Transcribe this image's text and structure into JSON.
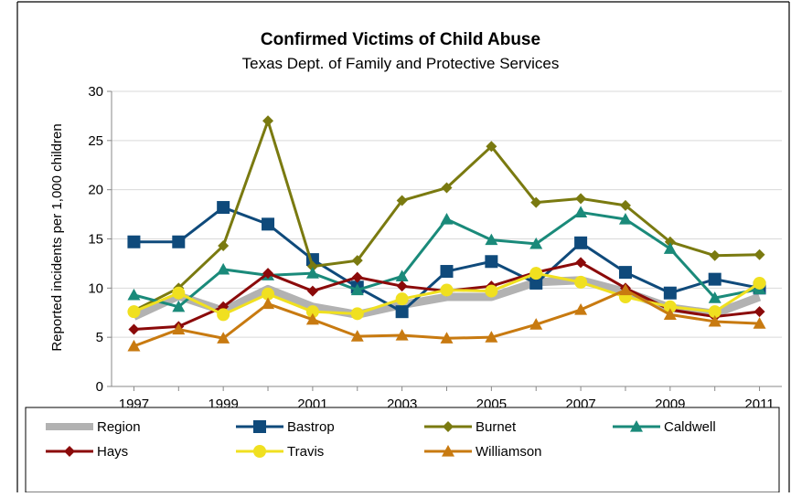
{
  "chart_data": {
    "type": "line",
    "title": "Confirmed Victims of Child Abuse",
    "subtitle": "Texas Dept. of Family and Protective Services",
    "ylabel": "Reported incidents per 1,000 children",
    "xlabel": "",
    "ylim": [
      0,
      30
    ],
    "yticks": [
      "0",
      "5",
      "10",
      "15",
      "20",
      "25",
      "30"
    ],
    "x": [
      1997,
      1998,
      1999,
      2000,
      2001,
      2002,
      2003,
      2004,
      2005,
      2006,
      2007,
      2008,
      2009,
      2010,
      2011
    ],
    "xticks": [
      "1997",
      "1999",
      "2001",
      "2003",
      "2005",
      "2007",
      "2009",
      "2011"
    ],
    "grid": true,
    "legend": "bottom",
    "series": [
      {
        "name": "Region",
        "color": "#b2b2b2",
        "marker": "none",
        "width": "thick",
        "values": [
          7.1,
          9.2,
          7.7,
          9.9,
          8.1,
          7.3,
          8.3,
          9.1,
          9.1,
          10.6,
          10.8,
          9.6,
          8.0,
          7.4,
          9.1
        ]
      },
      {
        "name": "Bastrop",
        "color": "#0f4a7b",
        "marker": "square",
        "values": [
          14.7,
          14.7,
          18.2,
          16.5,
          12.9,
          10.1,
          7.6,
          11.7,
          12.7,
          10.5,
          14.6,
          11.6,
          9.5,
          10.9,
          10.0
        ]
      },
      {
        "name": "Burnet",
        "color": "#7a7a10",
        "marker": "diamond",
        "values": [
          7.7,
          10.0,
          14.3,
          27.0,
          12.2,
          12.8,
          18.9,
          20.2,
          24.4,
          18.7,
          19.1,
          18.4,
          14.7,
          13.3,
          13.4
        ]
      },
      {
        "name": "Caldwell",
        "color": "#1a8a7a",
        "marker": "triangle",
        "values": [
          9.3,
          8.1,
          11.9,
          11.3,
          11.5,
          9.8,
          11.2,
          17.0,
          14.9,
          14.5,
          17.7,
          17.0,
          14.0,
          9.0,
          9.9
        ]
      },
      {
        "name": "Hays",
        "color": "#8b0a0a",
        "marker": "diamond",
        "values": [
          5.8,
          6.1,
          8.1,
          11.5,
          9.7,
          11.1,
          10.2,
          9.7,
          10.2,
          11.6,
          12.6,
          10.0,
          7.8,
          7.1,
          7.6
        ]
      },
      {
        "name": "Travis",
        "color": "#f0e020",
        "marker": "circle",
        "values": [
          7.6,
          9.5,
          7.3,
          9.4,
          7.6,
          7.4,
          8.9,
          9.8,
          9.7,
          11.5,
          10.6,
          9.1,
          8.1,
          7.6,
          10.5
        ]
      },
      {
        "name": "Williamson",
        "color": "#c87a10",
        "marker": "triangle",
        "values": [
          4.1,
          5.8,
          4.9,
          8.4,
          6.8,
          5.1,
          5.2,
          4.9,
          5.0,
          6.3,
          7.8,
          9.8,
          7.3,
          6.6,
          6.4
        ]
      }
    ]
  }
}
